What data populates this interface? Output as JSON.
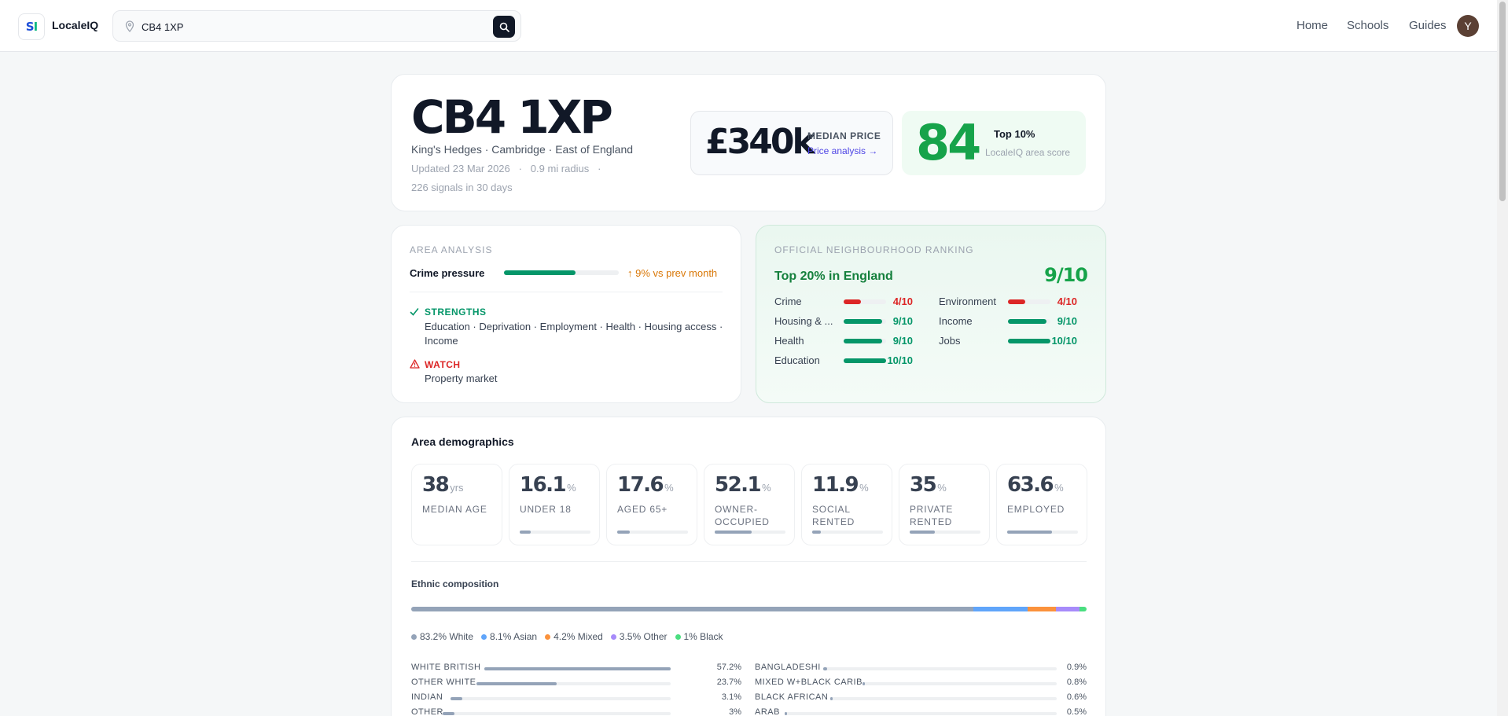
{
  "header": {
    "brand": "LocaleIQ",
    "search_value": "CB4 1XP",
    "nav": [
      "Home",
      "Schools",
      "Guides"
    ],
    "avatar_initial": "Y"
  },
  "hero": {
    "postcode": "CB4 1XP",
    "location": "King's Hedges · Cambridge · East of England",
    "updated": "Updated 23 Mar 2026",
    "radius": "0.9 mi radius",
    "signals": "226 signals in 30 days",
    "price_value": "£340k",
    "price_label": "MEDIAN PRICE",
    "price_link": "Price analysis →",
    "score_value": "84",
    "score_top": "Top 10%",
    "score_label": "LocaleIQ area score"
  },
  "analysis": {
    "label": "AREA ANALYSIS",
    "crime_label": "Crime pressure",
    "crime_level": 0.62,
    "crime_trend": "↑ 9% vs prev month",
    "strengths_title": "STRENGTHS",
    "strengths_text": "Education · Deprivation · Employment · Health · Housing access · Income",
    "watch_title": "WATCH",
    "watch_text": "Property market"
  },
  "ranking": {
    "label": "OFFICIAL NEIGHBOURHOOD RANKING",
    "top": "Top 20% in England",
    "score": "9/10",
    "items": [
      {
        "name": "Crime",
        "value": "4/10",
        "score": 4,
        "col": 0,
        "row": 0
      },
      {
        "name": "Environment",
        "value": "4/10",
        "score": 4,
        "col": 1,
        "row": 0
      },
      {
        "name": "Housing & ...",
        "value": "9/10",
        "score": 9,
        "col": 0,
        "row": 1
      },
      {
        "name": "Income",
        "value": "9/10",
        "score": 9,
        "col": 1,
        "row": 1
      },
      {
        "name": "Health",
        "value": "9/10",
        "score": 9,
        "col": 0,
        "row": 2
      },
      {
        "name": "Jobs",
        "value": "10/10",
        "score": 10,
        "col": 1,
        "row": 2
      },
      {
        "name": "Education",
        "value": "10/10",
        "score": 10,
        "col": 0,
        "row": 3
      }
    ],
    "colors": {
      "low": "#dc2626",
      "high": "#059669"
    }
  },
  "demographics": {
    "title": "Area demographics",
    "stats": [
      {
        "value": "38",
        "unit": "yrs",
        "label": "MEDIAN AGE",
        "bar": null
      },
      {
        "value": "16.1",
        "unit": "%",
        "label": "UNDER 18",
        "bar": 0.161
      },
      {
        "value": "17.6",
        "unit": "%",
        "label": "AGED 65+",
        "bar": 0.176
      },
      {
        "value": "52.1",
        "unit": "%",
        "label": "OWNER-OCCUPIED",
        "bar": 0.521
      },
      {
        "value": "11.9",
        "unit": "%",
        "label": "SOCIAL RENTED",
        "bar": 0.119
      },
      {
        "value": "35",
        "unit": "%",
        "label": "PRIVATE RENTED",
        "bar": 0.35
      },
      {
        "value": "63.6",
        "unit": "%",
        "label": "EMPLOYED",
        "bar": 0.636
      }
    ],
    "ethnic_title": "Ethnic composition",
    "ethnic_groups": [
      {
        "label": "83.2% White",
        "pct": 83.2,
        "color": "#94a3b8"
      },
      {
        "label": "8.1% Asian",
        "pct": 8.1,
        "color": "#60a5fa"
      },
      {
        "label": "4.2% Mixed",
        "pct": 4.2,
        "color": "#fb923c"
      },
      {
        "label": "3.5% Other",
        "pct": 3.5,
        "color": "#a78bfa"
      },
      {
        "label": "1% Black",
        "pct": 1.0,
        "color": "#4ade80"
      }
    ],
    "ethnic_detail_left": [
      {
        "name": "WHITE BRITISH",
        "value": "57.2%",
        "pct": 57.2
      },
      {
        "name": "OTHER WHITE",
        "value": "23.7%",
        "pct": 23.7
      },
      {
        "name": "INDIAN",
        "value": "3.1%",
        "pct": 3.1
      },
      {
        "name": "OTHER",
        "value": "3%",
        "pct": 3.0
      }
    ],
    "ethnic_detail_right": [
      {
        "name": "BANGLADESHI",
        "value": "0.9%",
        "pct": 0.9
      },
      {
        "name": "MIXED W+BLACK CARIB",
        "value": "0.8%",
        "pct": 0.8
      },
      {
        "name": "BLACK AFRICAN",
        "value": "0.6%",
        "pct": 0.6
      },
      {
        "name": "ARAB",
        "value": "0.5%",
        "pct": 0.5
      }
    ]
  }
}
